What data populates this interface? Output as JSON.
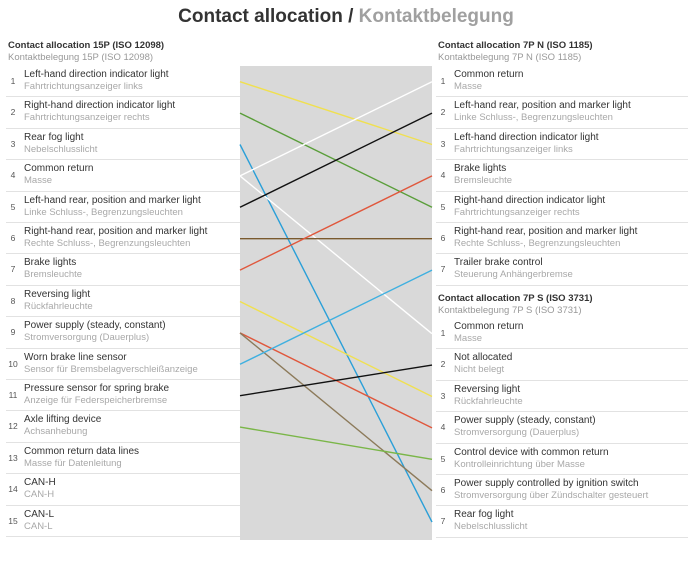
{
  "title": {
    "en": "Contact allocation",
    "separator": "/",
    "de": "Kontaktbelegung"
  },
  "left": {
    "title": "Contact allocation 15P (ISO 12098)",
    "subtitle": "Kontaktbelegung 15P (ISO 12098)",
    "rows": [
      {
        "pin": 1,
        "name": "Left-hand direction indicator light",
        "name_de": "Fahrtrichtungsanzeiger links"
      },
      {
        "pin": 2,
        "name": "Right-hand direction indicator light",
        "name_de": "Fahrtrichtungsanzeiger rechts"
      },
      {
        "pin": 3,
        "name": "Rear fog light",
        "name_de": "Nebelschlusslicht"
      },
      {
        "pin": 4,
        "name": "Common return",
        "name_de": "Masse"
      },
      {
        "pin": 5,
        "name": "Left-hand rear, position and marker light",
        "name_de": "Linke Schluss-, Begrenzungsleuchten"
      },
      {
        "pin": 6,
        "name": "Right-hand rear, position and marker light",
        "name_de": "Rechte Schluss-, Begrenzungsleuchten"
      },
      {
        "pin": 7,
        "name": "Brake lights",
        "name_de": "Bremsleuchte"
      },
      {
        "pin": 8,
        "name": "Reversing light",
        "name_de": "Rückfahrleuchte"
      },
      {
        "pin": 9,
        "name": "Power supply (steady, constant)",
        "name_de": "Stromversorgung (Dauerplus)"
      },
      {
        "pin": 10,
        "name": "Worn brake line sensor",
        "name_de": "Sensor für Bremsbelagverschleißanzeige"
      },
      {
        "pin": 11,
        "name": "Pressure sensor for spring brake",
        "name_de": "Anzeige für Federspeicherbremse"
      },
      {
        "pin": 12,
        "name": "Axle lifting device",
        "name_de": "Achsanhebung"
      },
      {
        "pin": 13,
        "name": "Common return data lines",
        "name_de": "Masse für Datenleitung"
      },
      {
        "pin": 14,
        "name": "CAN-H",
        "name_de": "CAN-H"
      },
      {
        "pin": 15,
        "name": "CAN-L",
        "name_de": "CAN-L"
      }
    ]
  },
  "right_n": {
    "title": "Contact allocation 7P N (ISO 1185)",
    "subtitle": "Kontaktbelegung 7P N (ISO 1185)",
    "rows": [
      {
        "pin": 1,
        "name": "Common return",
        "name_de": "Masse"
      },
      {
        "pin": 2,
        "name": "Left-hand rear, position and marker light",
        "name_de": "Linke Schluss-, Begrenzungsleuchten"
      },
      {
        "pin": 3,
        "name": "Left-hand direction indicator light",
        "name_de": "Fahrtrichtungsanzeiger links"
      },
      {
        "pin": 4,
        "name": "Brake lights",
        "name_de": "Bremsleuchte"
      },
      {
        "pin": 5,
        "name": "Right-hand direction indicator light",
        "name_de": "Fahrtrichtungsanzeiger rechts"
      },
      {
        "pin": 6,
        "name": "Right-hand rear, position and marker light",
        "name_de": "Rechte Schluss-, Begrenzungsleuchten"
      },
      {
        "pin": 7,
        "name": "Trailer brake control",
        "name_de": "Steuerung Anhängerbremse"
      }
    ]
  },
  "right_s": {
    "title": "Contact allocation 7P S (ISO 3731)",
    "subtitle": "Kontaktbelegung 7P S (ISO 3731)",
    "rows": [
      {
        "pin": 1,
        "name": "Common return",
        "name_de": "Masse"
      },
      {
        "pin": 2,
        "name": "Not allocated",
        "name_de": "Nicht belegt"
      },
      {
        "pin": 3,
        "name": "Reversing light",
        "name_de": "Rückfahrleuchte"
      },
      {
        "pin": 4,
        "name": "Power supply (steady, constant)",
        "name_de": "Stromversorgung (Dauerplus)"
      },
      {
        "pin": 5,
        "name": "Control device with common return",
        "name_de": "Kontrolleinrichtung über Masse"
      },
      {
        "pin": 6,
        "name": "Power supply controlled by ignition switch",
        "name_de": "Stromversorgung über Zündschalter gesteuert"
      },
      {
        "pin": 7,
        "name": "Rear fog light",
        "name_de": "Nebelschlusslicht"
      }
    ]
  }
}
